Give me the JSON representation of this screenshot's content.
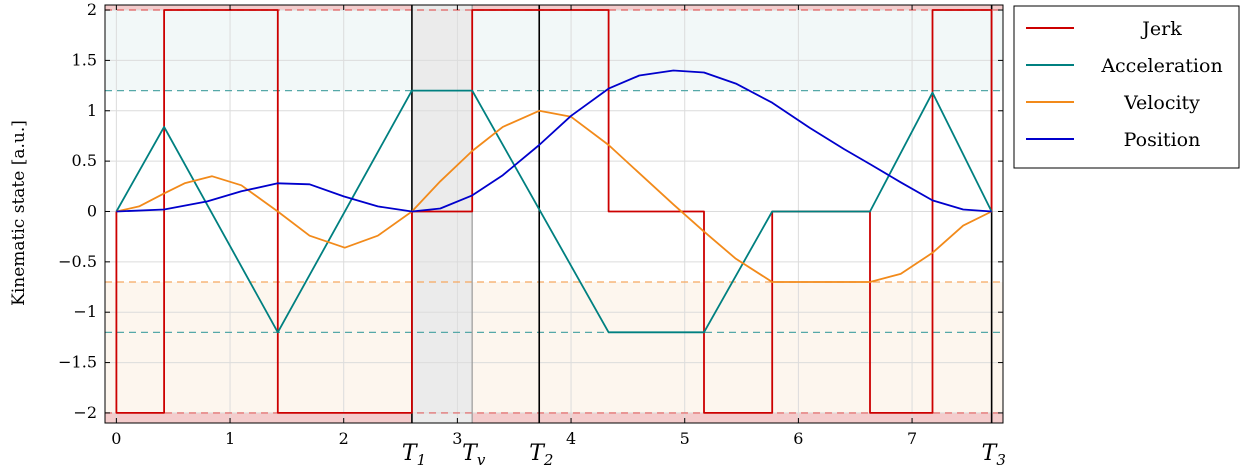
{
  "chart_data": {
    "type": "line",
    "ylabel": "Kinematic state [a.u.]",
    "xlim": [
      -0.1,
      7.8
    ],
    "ylim": [
      -2.1,
      2.05
    ],
    "x_ticks": [
      {
        "value": 0,
        "label": "0"
      },
      {
        "value": 1,
        "label": "1"
      },
      {
        "value": 2,
        "label": "2"
      },
      {
        "value": 3,
        "label": "3"
      },
      {
        "value": 4,
        "label": "4"
      },
      {
        "value": 5,
        "label": "5"
      },
      {
        "value": 6,
        "label": "6"
      },
      {
        "value": 7,
        "label": "7"
      }
    ],
    "y_ticks": [
      {
        "value": 2,
        "label": "2"
      },
      {
        "value": 1.5,
        "label": "1.5"
      },
      {
        "value": 1,
        "label": "1"
      },
      {
        "value": 0.5,
        "label": "0.5"
      },
      {
        "value": 0,
        "label": "0"
      },
      {
        "value": -0.5,
        "label": "−0.5"
      },
      {
        "value": -1,
        "label": "−1"
      },
      {
        "value": -1.5,
        "label": "−1.5"
      },
      {
        "value": -2,
        "label": "−2"
      }
    ],
    "grid": true,
    "legend_position": "outside-right-top",
    "markers": [
      {
        "name": "T1",
        "base": "T",
        "sub": "1",
        "x": 2.6,
        "color": "#000000"
      },
      {
        "name": "Tv",
        "base": "T",
        "sub": "v",
        "x": 3.13,
        "color": "#999999"
      },
      {
        "name": "T2",
        "base": "T",
        "sub": "2",
        "x": 3.72,
        "color": "#000000"
      },
      {
        "name": "T3",
        "base": "T",
        "sub": "3",
        "x": 7.7,
        "color": "#000000"
      }
    ],
    "shaded_regions": [
      {
        "name": "jerk-upper-band",
        "y": [
          2.0,
          2.05
        ],
        "color": "#f4cccc"
      },
      {
        "name": "jerk-lower-band",
        "y": [
          -2.1,
          -2.0
        ],
        "color": "#f4cccc"
      },
      {
        "name": "acceleration-upper-band",
        "y": [
          1.2,
          2.0
        ],
        "color": "#f2f8f8"
      },
      {
        "name": "velocity-lower-band",
        "y": [
          -2.0,
          -0.7
        ],
        "color": "#fdf6ee"
      },
      {
        "name": "coast-interval",
        "x": [
          2.6,
          3.13
        ],
        "color": "#ebebeb"
      }
    ],
    "limit_lines": [
      {
        "name": "jerk-max",
        "y": 2.0,
        "color": "#e06060"
      },
      {
        "name": "jerk-min",
        "y": -2.0,
        "color": "#e06060"
      },
      {
        "name": "acceleration-max",
        "y": 1.2,
        "color": "#55a8a8"
      },
      {
        "name": "acceleration-min",
        "y": -1.2,
        "color": "#55a8a8"
      },
      {
        "name": "velocity-min",
        "y": -0.7,
        "color": "#f5a860"
      }
    ],
    "series": [
      {
        "name": "Jerk",
        "color": "#cc0000",
        "points": [
          [
            0,
            0
          ],
          [
            0,
            -2
          ],
          [
            0.42,
            -2
          ],
          [
            0.42,
            2
          ],
          [
            1.42,
            2
          ],
          [
            1.42,
            -2
          ],
          [
            2.6,
            -2
          ],
          [
            2.6,
            0
          ],
          [
            3.13,
            0
          ],
          [
            3.13,
            2
          ],
          [
            4.33,
            2
          ],
          [
            4.33,
            0
          ],
          [
            5.17,
            0
          ],
          [
            5.17,
            -2
          ],
          [
            5.77,
            -2
          ],
          [
            5.77,
            0
          ],
          [
            6.63,
            0
          ],
          [
            6.63,
            -2
          ],
          [
            7.18,
            -2
          ],
          [
            7.18,
            2
          ],
          [
            7.7,
            2
          ],
          [
            7.7,
            0
          ]
        ]
      },
      {
        "name": "Acceleration",
        "color": "#008080",
        "points": [
          [
            0,
            0
          ],
          [
            0.42,
            0.84
          ],
          [
            1.42,
            -1.2
          ],
          [
            2.6,
            1.2
          ],
          [
            3.13,
            1.2
          ],
          [
            4.33,
            -1.2
          ],
          [
            5.17,
            -1.2
          ],
          [
            5.77,
            0
          ],
          [
            6.63,
            0
          ],
          [
            7.18,
            1.18
          ],
          [
            7.7,
            0
          ]
        ]
      },
      {
        "name": "Velocity",
        "color": "#f28a1a",
        "points": [
          [
            0,
            0
          ],
          [
            0.2,
            0.05
          ],
          [
            0.42,
            0.18
          ],
          [
            0.6,
            0.28
          ],
          [
            0.84,
            0.35
          ],
          [
            1.1,
            0.26
          ],
          [
            1.42,
            0
          ],
          [
            1.7,
            -0.24
          ],
          [
            2.01,
            -0.36
          ],
          [
            2.3,
            -0.24
          ],
          [
            2.6,
            0
          ],
          [
            2.85,
            0.3
          ],
          [
            3.13,
            0.6
          ],
          [
            3.4,
            0.84
          ],
          [
            3.72,
            1.0
          ],
          [
            4.0,
            0.94
          ],
          [
            4.33,
            0.66
          ],
          [
            4.6,
            0.38
          ],
          [
            4.9,
            0.07
          ],
          [
            5.17,
            -0.2
          ],
          [
            5.45,
            -0.47
          ],
          [
            5.77,
            -0.7
          ],
          [
            6.0,
            -0.7
          ],
          [
            6.63,
            -0.7
          ],
          [
            6.9,
            -0.62
          ],
          [
            7.18,
            -0.41
          ],
          [
            7.45,
            -0.14
          ],
          [
            7.7,
            0
          ]
        ]
      },
      {
        "name": "Position",
        "color": "#0000cc",
        "points": [
          [
            0,
            0
          ],
          [
            0.42,
            0.02
          ],
          [
            0.8,
            0.1
          ],
          [
            1.1,
            0.2
          ],
          [
            1.42,
            0.28
          ],
          [
            1.7,
            0.27
          ],
          [
            2.0,
            0.15
          ],
          [
            2.3,
            0.05
          ],
          [
            2.6,
            0
          ],
          [
            2.85,
            0.03
          ],
          [
            3.13,
            0.16
          ],
          [
            3.4,
            0.36
          ],
          [
            3.72,
            0.66
          ],
          [
            4.0,
            0.95
          ],
          [
            4.33,
            1.22
          ],
          [
            4.6,
            1.35
          ],
          [
            4.9,
            1.4
          ],
          [
            5.17,
            1.38
          ],
          [
            5.45,
            1.27
          ],
          [
            5.77,
            1.08
          ],
          [
            6.1,
            0.83
          ],
          [
            6.4,
            0.62
          ],
          [
            6.63,
            0.47
          ],
          [
            6.9,
            0.29
          ],
          [
            7.18,
            0.11
          ],
          [
            7.45,
            0.02
          ],
          [
            7.7,
            0
          ]
        ]
      }
    ]
  }
}
